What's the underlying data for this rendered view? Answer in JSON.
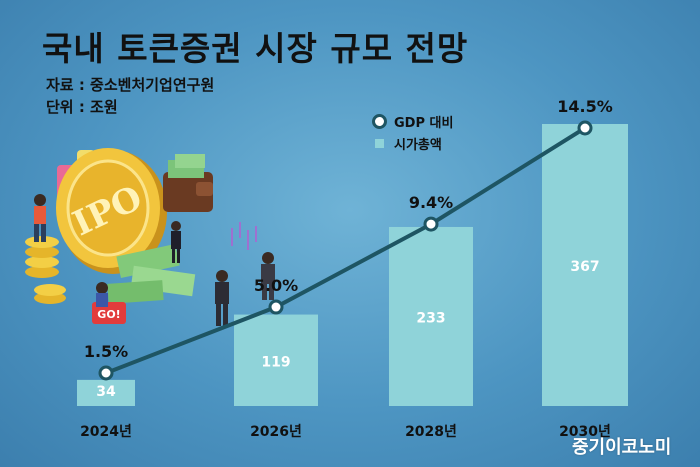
{
  "title": "국내 토큰증권 시장 규모 전망",
  "source": "자료 : 중소벤처기업연구원",
  "unit": "단위 : 조원",
  "watermark": "중기이코노미",
  "illustration": {
    "coin_text": "IPO",
    "tag_text": "GO!"
  },
  "colors": {
    "bar": "#8fd3d9",
    "line": "#1e5563",
    "background": "#4d95c2"
  },
  "chart_data": {
    "type": "bar",
    "categories": [
      "2024년",
      "2026년",
      "2028년",
      "2030년"
    ],
    "series": [
      {
        "name": "시가총액",
        "values": [
          34,
          119,
          233,
          367
        ],
        "labels": [
          "34",
          "119",
          "233",
          "367"
        ],
        "render": "bar"
      },
      {
        "name": "GDP 대비",
        "values": [
          1.5,
          5.0,
          9.4,
          14.5
        ],
        "labels": [
          "1.5%",
          "5.0%",
          "9.4%",
          "14.5%"
        ],
        "render": "line"
      }
    ],
    "legend_position": "top-right",
    "grid": false
  }
}
